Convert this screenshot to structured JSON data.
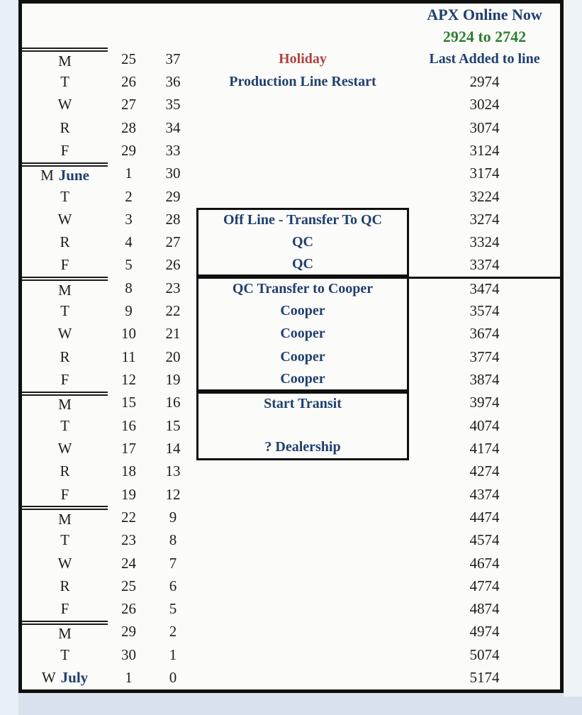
{
  "palette": {
    "navy": "#1f3f6e",
    "green": "#2e7d33",
    "red": "#b0413e",
    "black": "#1d1d1d",
    "border": "#101010",
    "page_bg": "#d7e2ee",
    "sheet_bg": "#fbfbf9"
  },
  "header": {
    "line1": "APX Online Now",
    "line2": "2924 to 2742"
  },
  "rows": [
    {
      "day": "M",
      "month": "",
      "date": "25",
      "countdown": "37",
      "note": "Holiday",
      "note_color": "red",
      "box": false,
      "box_pos": "",
      "right": "Last Added to line",
      "right_header": true,
      "sep": true,
      "sep_right": false
    },
    {
      "day": "T",
      "month": "",
      "date": "26",
      "countdown": "36",
      "note": "Production Line Restart",
      "note_color": "navy",
      "box": false,
      "box_pos": "",
      "right": "2974",
      "right_header": false,
      "sep": false,
      "sep_right": false
    },
    {
      "day": "W",
      "month": "",
      "date": "27",
      "countdown": "35",
      "note": "",
      "note_color": "",
      "box": false,
      "box_pos": "",
      "right": "3024",
      "right_header": false,
      "sep": false,
      "sep_right": false
    },
    {
      "day": "R",
      "month": "",
      "date": "28",
      "countdown": "34",
      "note": "",
      "note_color": "",
      "box": false,
      "box_pos": "",
      "right": "3074",
      "right_header": false,
      "sep": false,
      "sep_right": false
    },
    {
      "day": "F",
      "month": "",
      "date": "29",
      "countdown": "33",
      "note": "",
      "note_color": "",
      "box": false,
      "box_pos": "",
      "right": "3124",
      "right_header": false,
      "sep": false,
      "sep_right": false
    },
    {
      "day": "M",
      "month": "June",
      "date": "1",
      "countdown": "30",
      "note": "",
      "note_color": "",
      "box": false,
      "box_pos": "",
      "right": "3174",
      "right_header": false,
      "sep": true,
      "sep_right": false
    },
    {
      "day": "T",
      "month": "",
      "date": "2",
      "countdown": "29",
      "note": "",
      "note_color": "",
      "box": false,
      "box_pos": "",
      "right": "3224",
      "right_header": false,
      "sep": false,
      "sep_right": false
    },
    {
      "day": "W",
      "month": "",
      "date": "3",
      "countdown": "28",
      "note": "Off Line - Transfer To QC",
      "note_color": "navy",
      "box": true,
      "box_pos": "first",
      "right": "3274",
      "right_header": false,
      "sep": false,
      "sep_right": false
    },
    {
      "day": "R",
      "month": "",
      "date": "4",
      "countdown": "27",
      "note": "QC",
      "note_color": "navy",
      "box": true,
      "box_pos": "mid",
      "right": "3324",
      "right_header": false,
      "sep": false,
      "sep_right": false
    },
    {
      "day": "F",
      "month": "",
      "date": "5",
      "countdown": "26",
      "note": "QC",
      "note_color": "navy",
      "box": true,
      "box_pos": "last",
      "right": "3374",
      "right_header": false,
      "sep": false,
      "sep_right": false
    },
    {
      "day": "M",
      "month": "",
      "date": "8",
      "countdown": "23",
      "note": "QC Transfer to Cooper",
      "note_color": "navy",
      "box": true,
      "box_pos": "first",
      "right": "3474",
      "right_header": false,
      "sep": true,
      "sep_right": true
    },
    {
      "day": "T",
      "month": "",
      "date": "9",
      "countdown": "22",
      "note": "Cooper",
      "note_color": "navy",
      "box": true,
      "box_pos": "mid",
      "right": "3574",
      "right_header": false,
      "sep": false,
      "sep_right": false
    },
    {
      "day": "W",
      "month": "",
      "date": "10",
      "countdown": "21",
      "note": "Cooper",
      "note_color": "navy",
      "box": true,
      "box_pos": "mid",
      "right": "3674",
      "right_header": false,
      "sep": false,
      "sep_right": false
    },
    {
      "day": "R",
      "month": "",
      "date": "11",
      "countdown": "20",
      "note": "Cooper",
      "note_color": "navy",
      "box": true,
      "box_pos": "mid",
      "right": "3774",
      "right_header": false,
      "sep": false,
      "sep_right": false
    },
    {
      "day": "F",
      "month": "",
      "date": "12",
      "countdown": "19",
      "note": "Cooper",
      "note_color": "navy",
      "box": true,
      "box_pos": "last",
      "right": "3874",
      "right_header": false,
      "sep": false,
      "sep_right": false
    },
    {
      "day": "M",
      "month": "",
      "date": "15",
      "countdown": "16",
      "note": "Start Transit",
      "note_color": "navy",
      "box": true,
      "box_pos": "first",
      "right": "3974",
      "right_header": false,
      "sep": true,
      "sep_right": false
    },
    {
      "day": "T",
      "month": "",
      "date": "16",
      "countdown": "15",
      "note": "",
      "note_color": "navy",
      "box": true,
      "box_pos": "mid",
      "right": "4074",
      "right_header": false,
      "sep": false,
      "sep_right": false
    },
    {
      "day": "W",
      "month": "",
      "date": "17",
      "countdown": "14",
      "note": "? Dealership",
      "note_color": "navy",
      "box": true,
      "box_pos": "last",
      "right": "4174",
      "right_header": false,
      "sep": false,
      "sep_right": false
    },
    {
      "day": "R",
      "month": "",
      "date": "18",
      "countdown": "13",
      "note": "",
      "note_color": "",
      "box": false,
      "box_pos": "",
      "right": "4274",
      "right_header": false,
      "sep": false,
      "sep_right": false
    },
    {
      "day": "F",
      "month": "",
      "date": "19",
      "countdown": "12",
      "note": "",
      "note_color": "",
      "box": false,
      "box_pos": "",
      "right": "4374",
      "right_header": false,
      "sep": false,
      "sep_right": false
    },
    {
      "day": "M",
      "month": "",
      "date": "22",
      "countdown": "9",
      "note": "",
      "note_color": "",
      "box": false,
      "box_pos": "",
      "right": "4474",
      "right_header": false,
      "sep": true,
      "sep_right": false
    },
    {
      "day": "T",
      "month": "",
      "date": "23",
      "countdown": "8",
      "note": "",
      "note_color": "",
      "box": false,
      "box_pos": "",
      "right": "4574",
      "right_header": false,
      "sep": false,
      "sep_right": false
    },
    {
      "day": "W",
      "month": "",
      "date": "24",
      "countdown": "7",
      "note": "",
      "note_color": "",
      "box": false,
      "box_pos": "",
      "right": "4674",
      "right_header": false,
      "sep": false,
      "sep_right": false
    },
    {
      "day": "R",
      "month": "",
      "date": "25",
      "countdown": "6",
      "note": "",
      "note_color": "",
      "box": false,
      "box_pos": "",
      "right": "4774",
      "right_header": false,
      "sep": false,
      "sep_right": false
    },
    {
      "day": "F",
      "month": "",
      "date": "26",
      "countdown": "5",
      "note": "",
      "note_color": "",
      "box": false,
      "box_pos": "",
      "right": "4874",
      "right_header": false,
      "sep": false,
      "sep_right": false
    },
    {
      "day": "M",
      "month": "",
      "date": "29",
      "countdown": "2",
      "note": "",
      "note_color": "",
      "box": false,
      "box_pos": "",
      "right": "4974",
      "right_header": false,
      "sep": true,
      "sep_right": false
    },
    {
      "day": "T",
      "month": "",
      "date": "30",
      "countdown": "1",
      "note": "",
      "note_color": "",
      "box": false,
      "box_pos": "",
      "right": "5074",
      "right_header": false,
      "sep": false,
      "sep_right": false
    },
    {
      "day": "W",
      "month": "July",
      "date": "1",
      "countdown": "0",
      "note": "",
      "note_color": "",
      "box": false,
      "box_pos": "",
      "right": "5174",
      "right_header": false,
      "sep": false,
      "sep_right": false
    }
  ]
}
